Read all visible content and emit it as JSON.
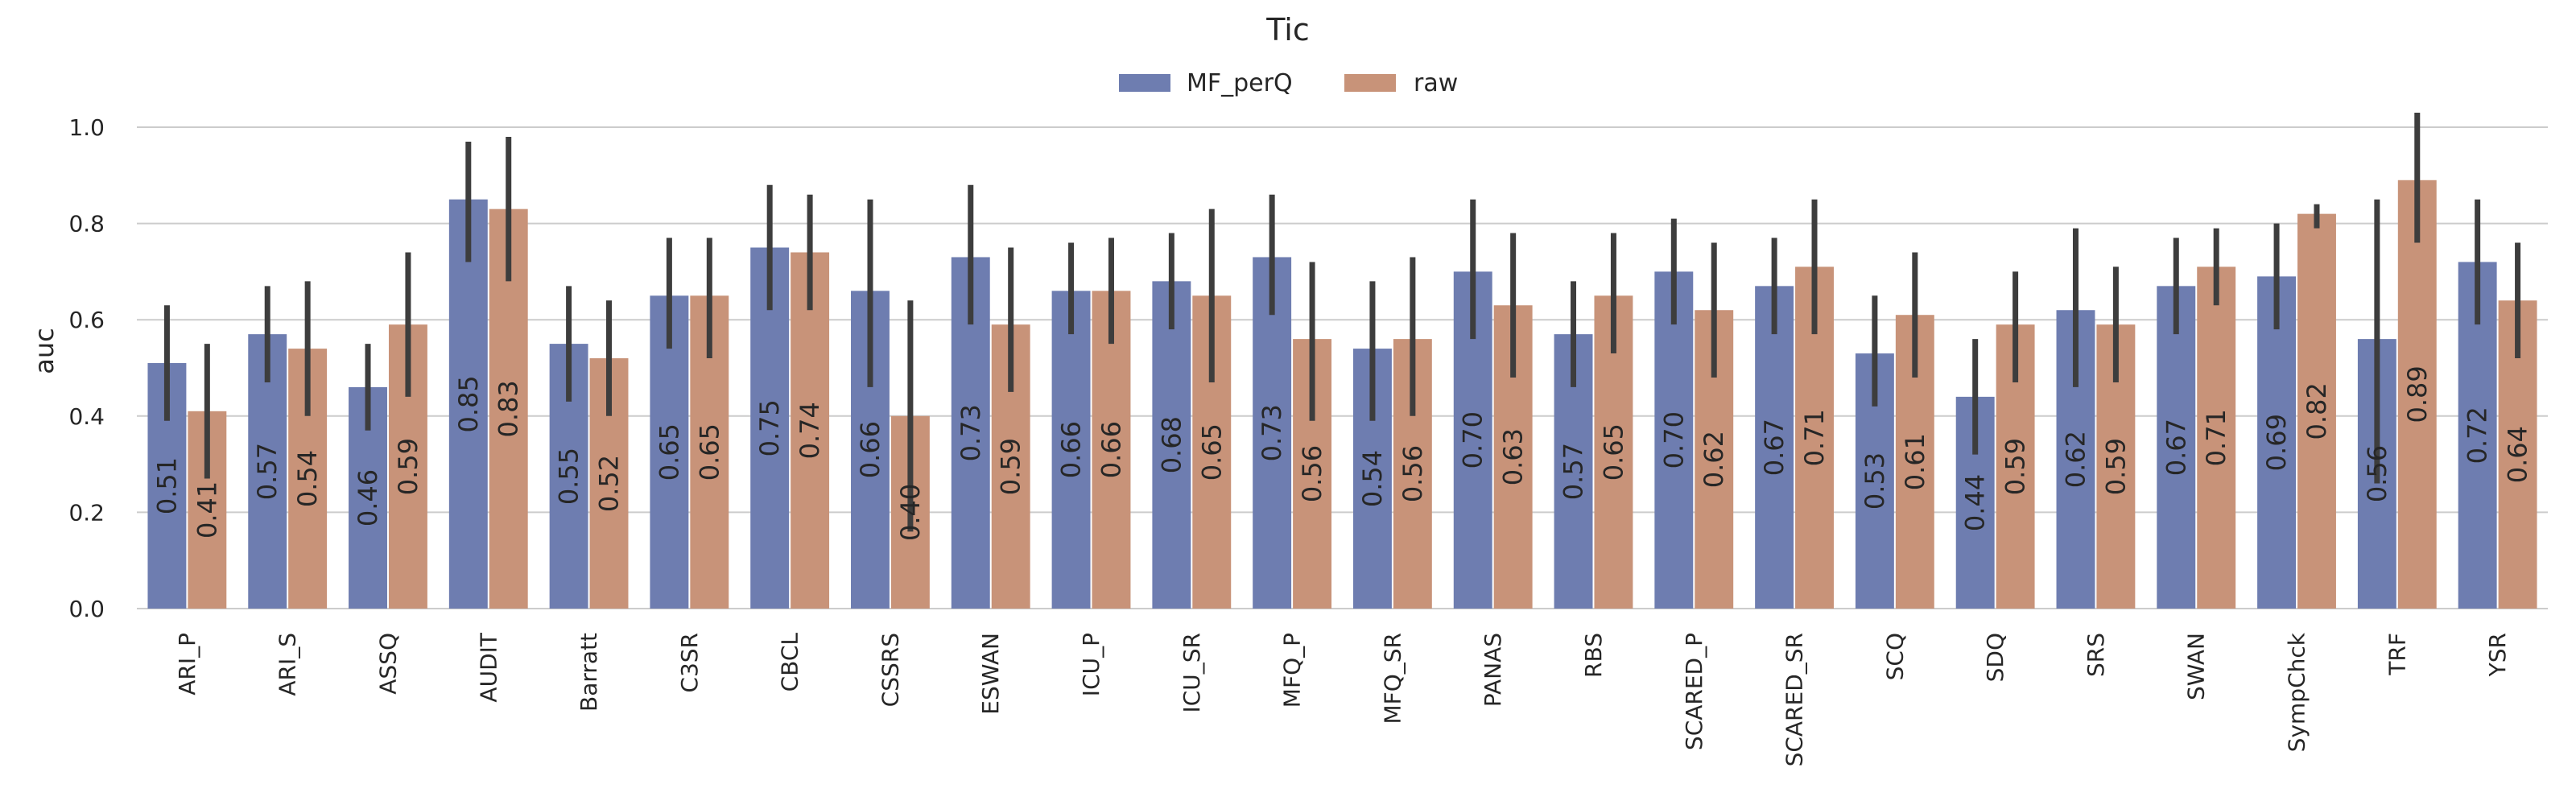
{
  "chart_data": {
    "type": "bar",
    "title": "Tic",
    "ylabel": "auc",
    "xlabel": "",
    "ylim": [
      0,
      1.0
    ],
    "yticks": [
      "0.0",
      "0.2",
      "0.4",
      "0.6",
      "0.8",
      "1.0"
    ],
    "grid": "horizontal",
    "legend_position": "top-center",
    "categories": [
      "ARI_P",
      "ARI_S",
      "ASSQ",
      "AUDIT",
      "Barratt",
      "C3SR",
      "CBCL",
      "CSSRS",
      "ESWAN",
      "ICU_P",
      "ICU_SR",
      "MFQ_P",
      "MFQ_SR",
      "PANAS",
      "RBS",
      "SCARED_P",
      "SCARED_SR",
      "SCQ",
      "SDQ",
      "SRS",
      "SWAN",
      "SympChck",
      "TRF",
      "YSR"
    ],
    "series": [
      {
        "name": "MF_perQ",
        "color": "#6e7db0",
        "values": [
          0.51,
          0.57,
          0.46,
          0.85,
          0.55,
          0.65,
          0.75,
          0.66,
          0.73,
          0.66,
          0.68,
          0.73,
          0.54,
          0.7,
          0.57,
          0.7,
          0.67,
          0.53,
          0.44,
          0.62,
          0.67,
          0.69,
          0.56,
          0.72
        ],
        "labels": [
          "0.51",
          "0.57",
          "0.46",
          "0.85",
          "0.55",
          "0.65",
          "0.75",
          "0.66",
          "0.73",
          "0.66",
          "0.68",
          "0.73",
          "0.54",
          "0.70",
          "0.57",
          "0.70",
          "0.67",
          "0.53",
          "0.44",
          "0.62",
          "0.67",
          "0.69",
          "0.56",
          "0.72"
        ],
        "ci_low": [
          0.39,
          0.47,
          0.37,
          0.72,
          0.43,
          0.54,
          0.62,
          0.46,
          0.59,
          0.57,
          0.58,
          0.61,
          0.39,
          0.56,
          0.46,
          0.59,
          0.57,
          0.42,
          0.32,
          0.46,
          0.57,
          0.58,
          0.26,
          0.59
        ],
        "ci_high": [
          0.63,
          0.67,
          0.55,
          0.97,
          0.67,
          0.77,
          0.88,
          0.85,
          0.88,
          0.76,
          0.78,
          0.86,
          0.68,
          0.85,
          0.68,
          0.81,
          0.77,
          0.65,
          0.56,
          0.79,
          0.77,
          0.8,
          0.85,
          0.85
        ]
      },
      {
        "name": "raw",
        "color": "#c89379",
        "values": [
          0.41,
          0.54,
          0.59,
          0.83,
          0.52,
          0.65,
          0.74,
          0.4,
          0.59,
          0.66,
          0.65,
          0.56,
          0.56,
          0.63,
          0.65,
          0.62,
          0.71,
          0.61,
          0.59,
          0.59,
          0.71,
          0.82,
          0.89,
          0.64
        ],
        "labels": [
          "0.41",
          "0.54",
          "0.59",
          "0.83",
          "0.52",
          "0.65",
          "0.74",
          "0.40",
          "0.59",
          "0.66",
          "0.65",
          "0.56",
          "0.56",
          "0.63",
          "0.65",
          "0.62",
          "0.71",
          "0.61",
          "0.59",
          "0.59",
          "0.71",
          "0.82",
          "0.89",
          "0.64"
        ],
        "ci_low": [
          0.27,
          0.4,
          0.44,
          0.68,
          0.4,
          0.52,
          0.62,
          0.16,
          0.45,
          0.55,
          0.47,
          0.39,
          0.4,
          0.48,
          0.53,
          0.48,
          0.57,
          0.48,
          0.47,
          0.47,
          0.63,
          0.79,
          0.76,
          0.52
        ],
        "ci_high": [
          0.55,
          0.68,
          0.74,
          0.98,
          0.64,
          0.77,
          0.86,
          0.64,
          0.75,
          0.77,
          0.83,
          0.72,
          0.73,
          0.78,
          0.78,
          0.76,
          0.85,
          0.74,
          0.7,
          0.71,
          0.79,
          0.84,
          1.03,
          0.76
        ]
      }
    ]
  }
}
